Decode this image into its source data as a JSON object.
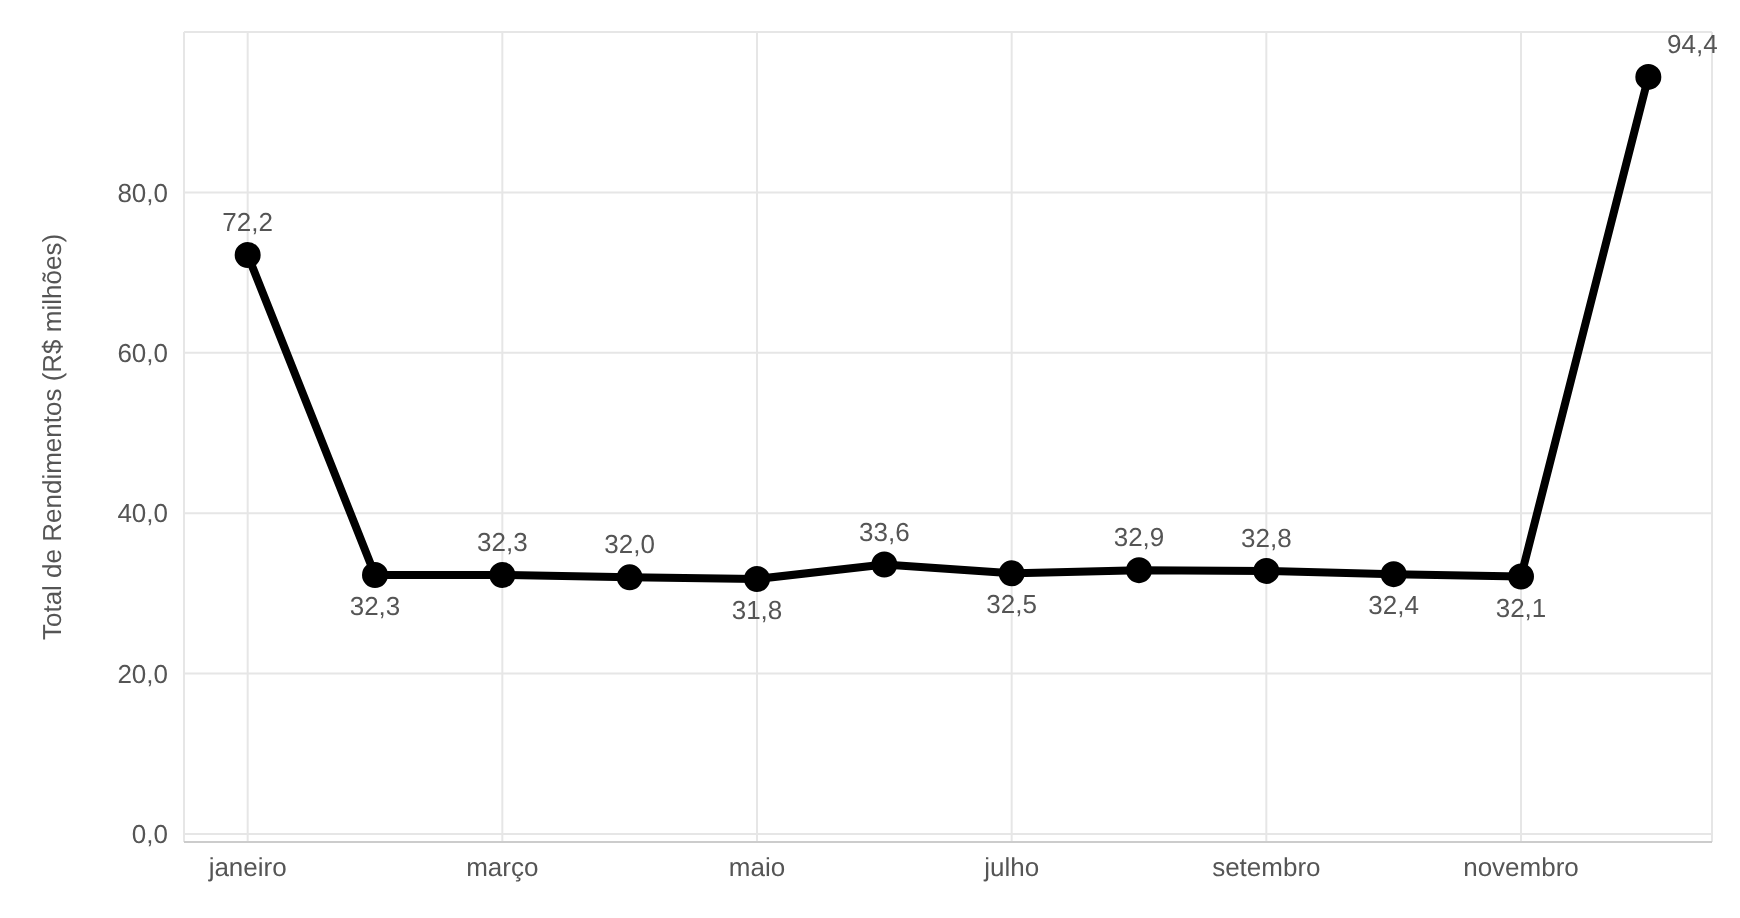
{
  "chart_data": {
    "type": "line",
    "ylabel": "Total de Rendimentos (R$ milhões)",
    "categories": [
      "janeiro",
      null,
      "março",
      null,
      "maio",
      null,
      "julho",
      null,
      "setembro",
      null,
      "novembro",
      null
    ],
    "series": [
      {
        "color": "#000000",
        "values": [
          72.2,
          32.3,
          32.3,
          32.0,
          31.8,
          33.6,
          32.5,
          32.9,
          32.8,
          32.4,
          32.1,
          94.4
        ],
        "value_labels": [
          "72,2",
          "32,3",
          "32,3",
          "32,0",
          "31,8",
          "33,6",
          "32,5",
          "32,9",
          "32,8",
          "32,4",
          "32,1",
          "94,4"
        ]
      }
    ],
    "ylim": [
      -1,
      100
    ],
    "yticks": [
      {
        "value": 0,
        "label": "0,0"
      },
      {
        "value": 20,
        "label": "20,0"
      },
      {
        "value": 40,
        "label": "40,0"
      },
      {
        "value": 60,
        "label": "60,0"
      },
      {
        "value": 80,
        "label": "80,0"
      }
    ],
    "grid": true,
    "marker": "circle",
    "line_style": "solid"
  }
}
